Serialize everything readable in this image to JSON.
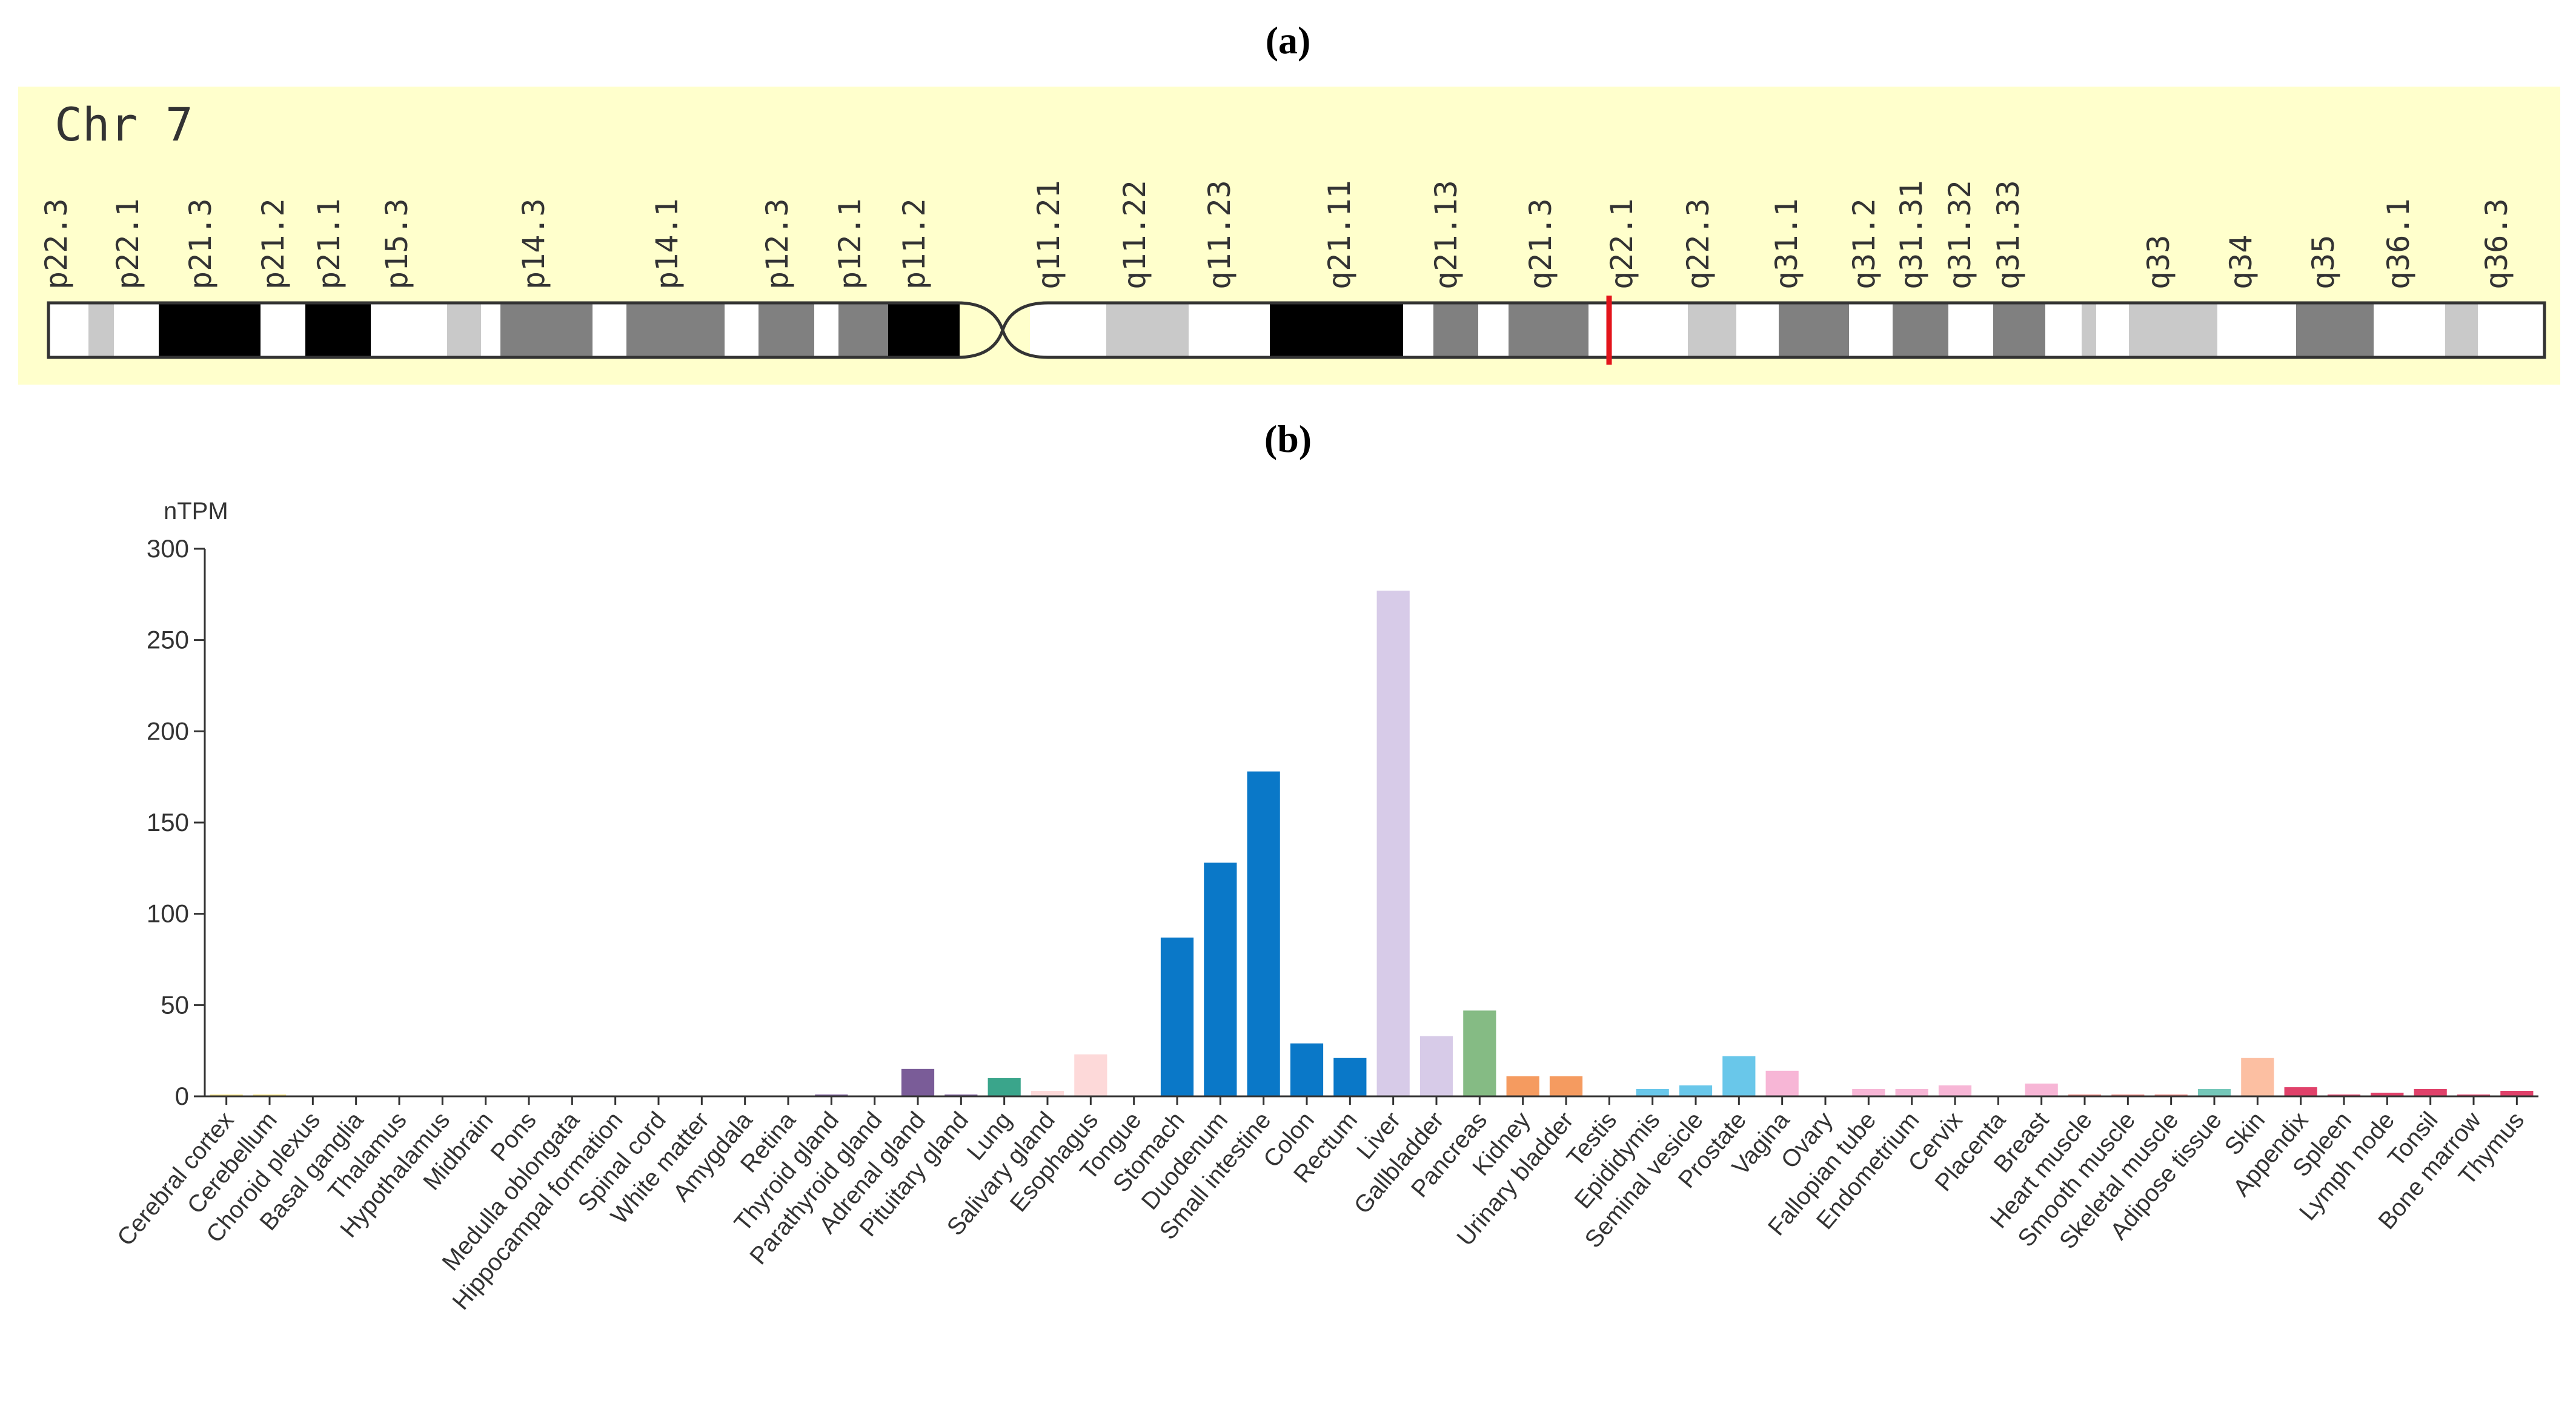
{
  "panel_a": {
    "label": "(a)",
    "chromosome": "Chr 7",
    "marker_color": "#e3141b",
    "band_labels": [
      "p22.3",
      "p22.1",
      "p21.3",
      "p21.2",
      "p21.1",
      "p15.3",
      "p14.3",
      "p14.1",
      "p12.3",
      "p12.1",
      "p11.2",
      "q11.21",
      "q11.22",
      "q11.23",
      "q21.11",
      "q21.13",
      "q21.3",
      "q22.1",
      "q22.3",
      "q31.1",
      "q31.2",
      "q31.31",
      "q31.32",
      "q31.33",
      "q33",
      "q34",
      "q35",
      "q36.1",
      "q36.3"
    ],
    "colors": {
      "background": "#ffffcc",
      "outline": "#333333"
    }
  },
  "panel_b": {
    "label": "(b)"
  },
  "chart_data": {
    "type": "bar",
    "title": "",
    "ylabel": "nTPM",
    "xlabel": "",
    "ylim": [
      0,
      300
    ],
    "yticks": [
      0,
      50,
      100,
      150,
      200,
      250,
      300
    ],
    "categories": [
      "Cerebral cortex",
      "Cerebellum",
      "Choroid plexus",
      "Basal ganglia",
      "Thalamus",
      "Hypothalamus",
      "Midbrain",
      "Pons",
      "Medulla oblongata",
      "Hippocampal formation",
      "Spinal cord",
      "White matter",
      "Amygdala",
      "Retina",
      "Thyroid gland",
      "Parathyroid gland",
      "Adrenal gland",
      "Pituitary gland",
      "Lung",
      "Salivary gland",
      "Esophagus",
      "Tongue",
      "Stomach",
      "Duodenum",
      "Small intestine",
      "Colon",
      "Rectum",
      "Liver",
      "Gallbladder",
      "Pancreas",
      "Kidney",
      "Urinary bladder",
      "Testis",
      "Epididymis",
      "Seminal vesicle",
      "Prostate",
      "Vagina",
      "Ovary",
      "Fallopian tube",
      "Endometrium",
      "Cervix",
      "Placenta",
      "Breast",
      "Heart muscle",
      "Smooth muscle",
      "Skeletal muscle",
      "Adipose tissue",
      "Skin",
      "Appendix",
      "Spleen",
      "Lymph node",
      "Tonsil",
      "Bone marrow",
      "Thymus"
    ],
    "values": [
      1,
      1,
      0.5,
      0.5,
      0.5,
      0.5,
      0.5,
      0.5,
      0.5,
      0.5,
      0.5,
      0.5,
      0.5,
      0.5,
      1,
      0.5,
      15,
      1,
      10,
      3,
      23,
      0.5,
      87,
      128,
      178,
      29,
      21,
      277,
      33,
      47,
      11,
      11,
      0.5,
      4,
      6,
      22,
      14,
      0.5,
      4,
      4,
      6,
      0.5,
      7,
      1,
      1,
      1,
      4,
      21,
      5,
      1,
      2,
      4,
      1,
      3
    ],
    "colors": [
      "#f6e07b",
      "#f6e07b",
      "#f6e07b",
      "#f6e07b",
      "#f6e07b",
      "#f6e07b",
      "#f6e07b",
      "#f6e07b",
      "#f6e07b",
      "#f6e07b",
      "#f6e07b",
      "#f6e07b",
      "#f6e07b",
      "#f6e07b",
      "#7a5c98",
      "#7a5c98",
      "#7a5c98",
      "#7a5c98",
      "#3aa58b",
      "#fdd9d9",
      "#fdd9d9",
      "#fdd9d9",
      "#0a78c8",
      "#0a78c8",
      "#0a78c8",
      "#0a78c8",
      "#0a78c8",
      "#d7cbe8",
      "#d7cbe8",
      "#85bb84",
      "#f59b60",
      "#f59b60",
      "#69c7ea",
      "#69c7ea",
      "#69c7ea",
      "#69c7ea",
      "#f7b6d6",
      "#f7b6d6",
      "#f7b6d6",
      "#f7b6d6",
      "#f7b6d6",
      "#f7b6d6",
      "#f7b6d6",
      "#e8827d",
      "#e8827d",
      "#e8827d",
      "#74c7b9",
      "#fcbfa2",
      "#e0416a",
      "#e0416a",
      "#e0416a",
      "#e0416a",
      "#e0416a",
      "#e0416a"
    ]
  }
}
